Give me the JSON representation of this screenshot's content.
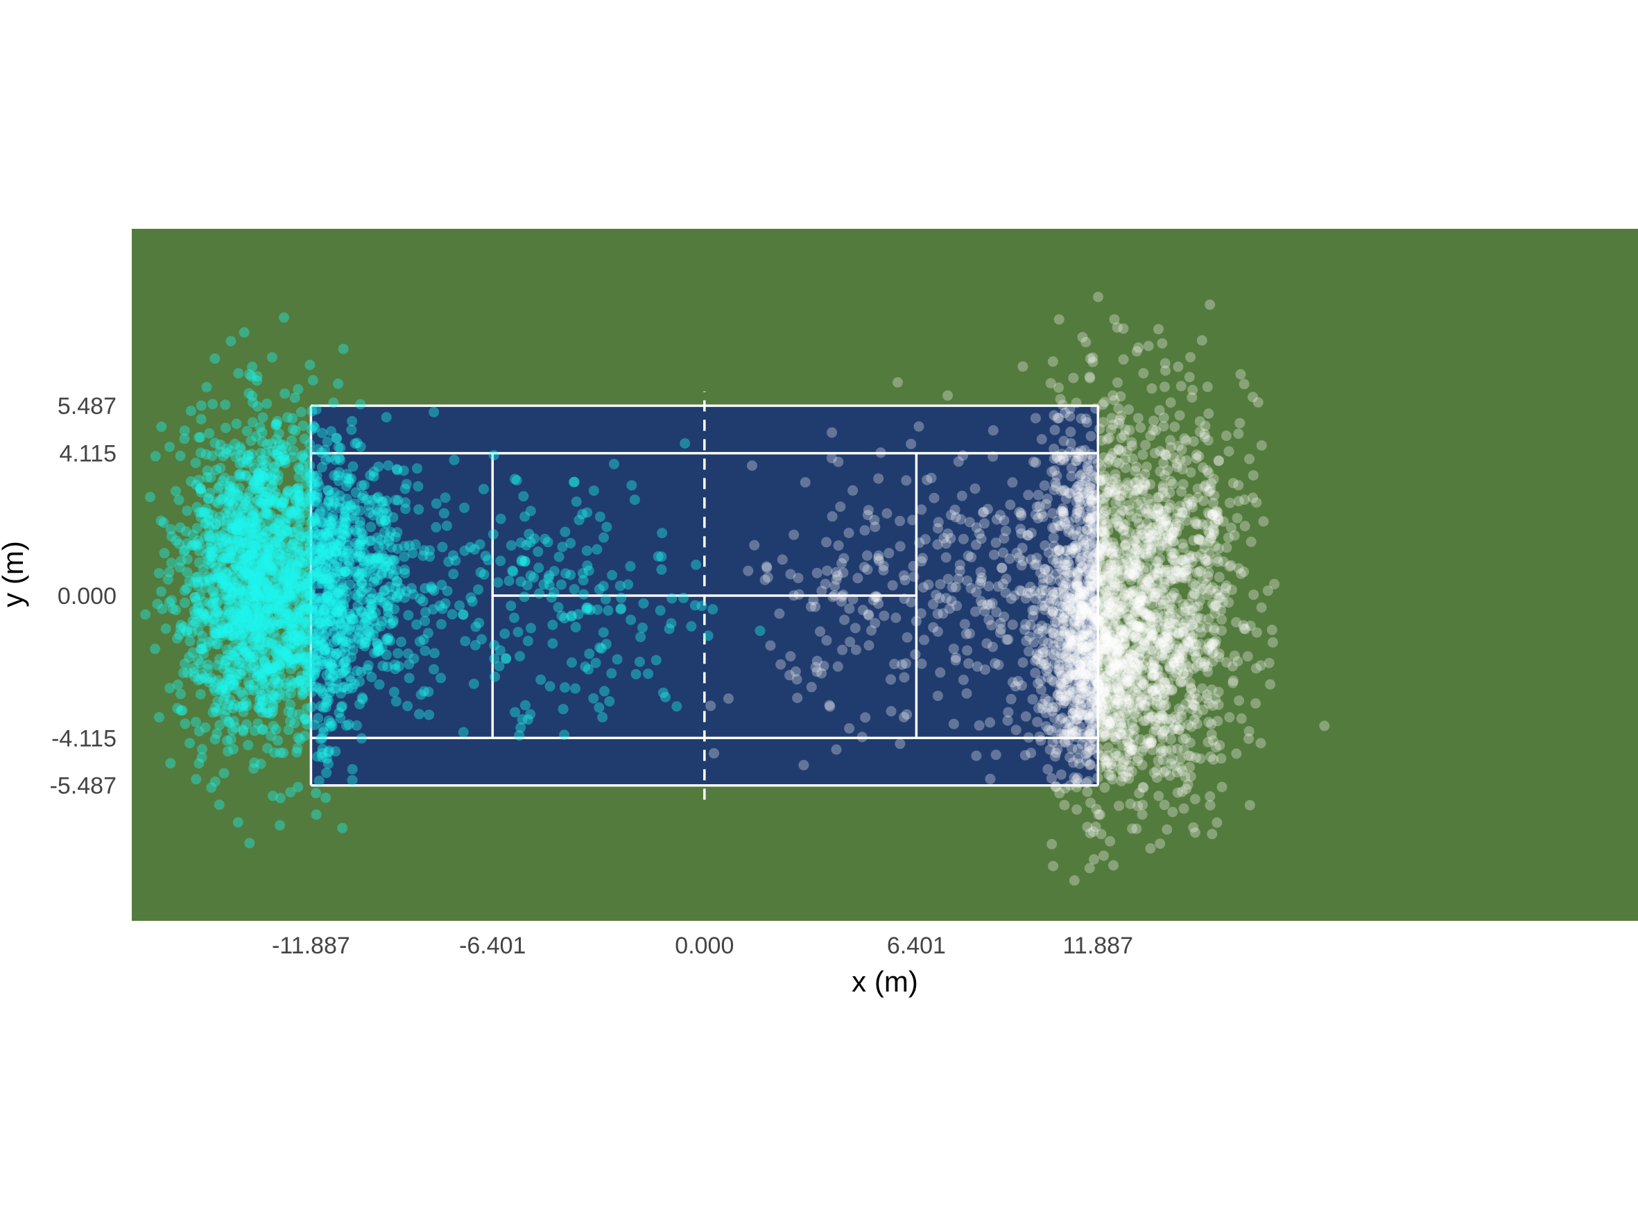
{
  "chart_data": {
    "type": "scatter",
    "title": "",
    "xlabel": "x (m)",
    "ylabel": "y (m)",
    "xlim": [
      -17.3,
      28.2
    ],
    "ylim": [
      -9.4,
      10.6
    ],
    "xticks": [
      {
        "value": -11.887,
        "label": "-11.887"
      },
      {
        "value": -6.401,
        "label": "-6.401"
      },
      {
        "value": 0.0,
        "label": "0.000"
      },
      {
        "value": 6.401,
        "label": "6.401"
      },
      {
        "value": 11.887,
        "label": "11.887"
      }
    ],
    "yticks": [
      {
        "value": 5.487,
        "label": "5.487"
      },
      {
        "value": 4.115,
        "label": "4.115"
      },
      {
        "value": 0.0,
        "label": "0.000"
      },
      {
        "value": -4.115,
        "label": "-4.115"
      },
      {
        "value": -5.487,
        "label": "-5.487"
      }
    ],
    "court_lines": {
      "doubles": {
        "x": [
          -11.887,
          11.887
        ],
        "y": [
          -5.487,
          5.487
        ]
      },
      "singles_y": [
        -4.115,
        4.115
      ],
      "service_x": [
        -6.401,
        6.401
      ],
      "center_service_y": 0.0,
      "net": {
        "x": 0.0,
        "y": [
          -5.9,
          5.9
        ],
        "style": "dashed"
      }
    },
    "series": [
      {
        "color": "#1ff5ee",
        "opacity": 0.4,
        "clusters": [
          {
            "cx": -13.5,
            "cy": 0.4,
            "sx": 1.2,
            "sy": 2.3,
            "n": 1500
          },
          {
            "cx": -11.5,
            "cy": 0.0,
            "sx": 0.7,
            "sy": 2.6,
            "n": 400
          },
          {
            "cx": -10.3,
            "cy": 0.5,
            "sx": 0.7,
            "sy": 1.8,
            "n": 200
          },
          {
            "cx": -9.0,
            "cy": 0.2,
            "sx": 1.6,
            "sy": 1.8,
            "n": 150
          },
          {
            "cx": -4.0,
            "cy": -0.3,
            "sx": 1.8,
            "sy": 1.7,
            "n": 170
          }
        ]
      },
      {
        "color": "#ffffff",
        "opacity": 0.3,
        "clusters": [
          {
            "cx": 13.5,
            "cy": 0.0,
            "sx": 1.4,
            "sy": 2.8,
            "n": 1300
          },
          {
            "cx": 11.6,
            "cy": 0.0,
            "sx": 0.7,
            "sy": 2.9,
            "n": 500
          },
          {
            "cx": 12.0,
            "cy": -2.2,
            "sx": 1.0,
            "sy": 1.4,
            "n": 450
          },
          {
            "cx": 9.8,
            "cy": 0.0,
            "sx": 1.3,
            "sy": 2.3,
            "n": 170
          },
          {
            "cx": 5.5,
            "cy": 0.2,
            "sx": 2.0,
            "sy": 2.0,
            "n": 200
          }
        ]
      }
    ],
    "colors": {
      "grass": "#537b3d",
      "court": "#203c6f",
      "lines": "#ffffff"
    }
  }
}
